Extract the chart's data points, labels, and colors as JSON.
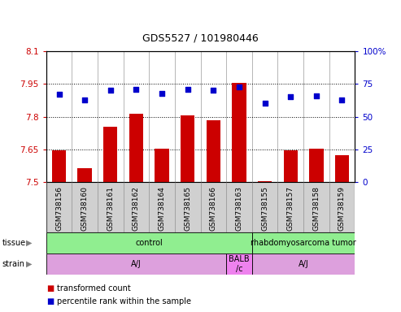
{
  "title": "GDS5527 / 101980446",
  "samples": [
    "GSM738156",
    "GSM738160",
    "GSM738161",
    "GSM738162",
    "GSM738164",
    "GSM738165",
    "GSM738166",
    "GSM738163",
    "GSM738155",
    "GSM738157",
    "GSM738158",
    "GSM738159"
  ],
  "red_values": [
    7.645,
    7.565,
    7.755,
    7.815,
    7.655,
    7.805,
    7.785,
    7.955,
    7.505,
    7.645,
    7.655,
    7.625
  ],
  "blue_values": [
    67,
    63,
    70,
    71,
    68,
    71,
    70,
    73,
    60,
    65,
    66,
    63
  ],
  "ylim_left": [
    7.5,
    8.1
  ],
  "ylim_right": [
    0,
    100
  ],
  "yticks_left": [
    7.5,
    7.65,
    7.8,
    7.95,
    8.1
  ],
  "yticks_right": [
    0,
    25,
    50,
    75,
    100
  ],
  "ytick_labels_left": [
    "7.5",
    "7.65",
    "7.8",
    "7.95",
    "8.1"
  ],
  "ytick_labels_right": [
    "0",
    "25",
    "50",
    "75",
    "100%"
  ],
  "hlines": [
    7.65,
    7.8,
    7.95
  ],
  "tissue_groups": [
    {
      "label": "control",
      "start": 0,
      "end": 8,
      "color": "#90EE90"
    },
    {
      "label": "rhabdomyosarcoma tumor",
      "start": 8,
      "end": 12,
      "color": "#90EE90"
    }
  ],
  "strain_groups": [
    {
      "label": "A/J",
      "start": 0,
      "end": 7,
      "color": "#DDA0DD"
    },
    {
      "label": "BALB\n/c",
      "start": 7,
      "end": 8,
      "color": "#EE82EE"
    },
    {
      "label": "A/J",
      "start": 8,
      "end": 12,
      "color": "#DDA0DD"
    }
  ],
  "bar_color": "#CC0000",
  "dot_color": "#0000CC",
  "tick_label_color_left": "#CC0000",
  "tick_label_color_right": "#0000CC",
  "xtick_bg": "#d0d0d0",
  "plot_bg": "#ffffff"
}
